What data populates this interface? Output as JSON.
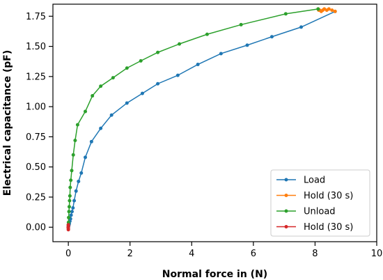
{
  "chart_data": {
    "type": "line",
    "title": "",
    "xlabel": "Normal force in (N)",
    "ylabel": "Electrical capacitance (pF)",
    "xlim": [
      -0.5,
      10
    ],
    "ylim": [
      -0.12,
      1.85
    ],
    "xticks": [
      0,
      2,
      4,
      6,
      8,
      10
    ],
    "yticks": [
      0.0,
      0.25,
      0.5,
      0.75,
      1.0,
      1.25,
      1.5,
      1.75
    ],
    "xtick_labels": [
      "0",
      "2",
      "4",
      "6",
      "8",
      "10"
    ],
    "ytick_labels": [
      "0.00",
      "0.25",
      "0.50",
      "0.75",
      "1.00",
      "1.25",
      "1.50",
      "1.75"
    ],
    "grid": false,
    "legend_position": "bottom-right",
    "series": [
      {
        "name": "Load",
        "color": "#1f77b4",
        "x": [
          0.0,
          0.01,
          0.02,
          0.03,
          0.05,
          0.07,
          0.09,
          0.12,
          0.15,
          0.19,
          0.25,
          0.33,
          0.42,
          0.55,
          0.75,
          1.05,
          1.4,
          1.9,
          2.4,
          2.9,
          3.55,
          4.2,
          4.95,
          5.8,
          6.6,
          7.55,
          8.65
        ],
        "y": [
          0.0,
          0.01,
          0.02,
          0.03,
          0.05,
          0.07,
          0.1,
          0.13,
          0.16,
          0.22,
          0.3,
          0.38,
          0.45,
          0.58,
          0.71,
          0.82,
          0.93,
          1.03,
          1.11,
          1.19,
          1.26,
          1.35,
          1.44,
          1.51,
          1.58,
          1.66,
          1.79
        ]
      },
      {
        "name": "Hold (30 s)",
        "color": "#ff7f0e",
        "x": [
          8.65,
          8.55,
          8.45,
          8.38,
          8.3,
          8.25,
          8.2,
          8.15,
          8.12,
          8.1
        ],
        "y": [
          1.79,
          1.8,
          1.81,
          1.8,
          1.81,
          1.8,
          1.79,
          1.8,
          1.8,
          1.81
        ]
      },
      {
        "name": "Unload",
        "color": "#2ca02c",
        "x": [
          8.1,
          7.05,
          5.6,
          4.5,
          3.6,
          2.9,
          2.35,
          1.9,
          1.45,
          1.05,
          0.78,
          0.55,
          0.3,
          0.22,
          0.16,
          0.11,
          0.08,
          0.06,
          0.05,
          0.04,
          0.03,
          0.02,
          0.01,
          0.005,
          0.0
        ],
        "y": [
          1.81,
          1.77,
          1.68,
          1.6,
          1.52,
          1.45,
          1.38,
          1.32,
          1.24,
          1.17,
          1.09,
          0.96,
          0.85,
          0.72,
          0.6,
          0.47,
          0.39,
          0.33,
          0.26,
          0.22,
          0.17,
          0.13,
          0.08,
          0.04,
          0.02
        ]
      },
      {
        "name": "Hold (30 s)",
        "color": "#d62728",
        "x": [
          0.0,
          0.0,
          -0.005,
          0.0,
          0.0
        ],
        "y": [
          0.02,
          0.01,
          0.0,
          -0.01,
          -0.02
        ]
      }
    ]
  }
}
